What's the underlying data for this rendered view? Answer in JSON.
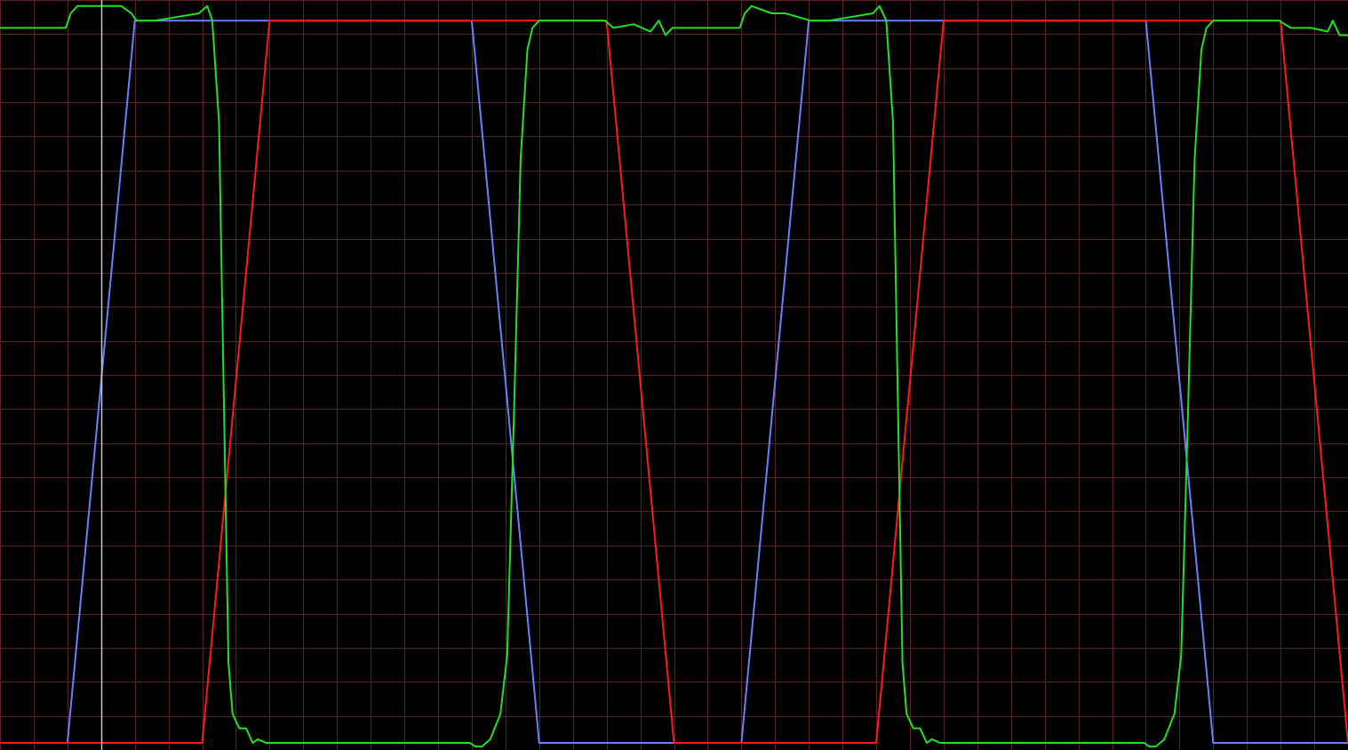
{
  "chart_data": {
    "type": "line",
    "title": "",
    "xlabel": "",
    "ylabel": "",
    "xlim": [
      0,
      40
    ],
    "ylim": [
      0,
      1
    ],
    "grid": true,
    "grid_divisions_x": 40,
    "grid_divisions_y": 22,
    "cursor_x": 3.0,
    "colors": {
      "background": "#000000",
      "grid": "#5a2323",
      "cursor": "#c8c8c8",
      "blue_trace": "#6a7fff",
      "red_trace": "#ff1a1a",
      "green_trace": "#22e022"
    },
    "series": [
      {
        "color": "#6a7fff",
        "x": [
          0,
          2.0,
          4.0,
          14.0,
          16.0,
          22.0,
          24.0,
          34.0,
          36.0,
          40.0
        ],
        "y": [
          0.0,
          0.0,
          0.99,
          0.99,
          0.0,
          0.0,
          0.99,
          0.99,
          0.0,
          0.0
        ]
      },
      {
        "color": "#ff1a1a",
        "x": [
          0,
          6.0,
          8.0,
          18.0,
          20.0,
          26.0,
          28.0,
          38.0,
          40.0
        ],
        "y": [
          0.0,
          0.0,
          0.99,
          0.99,
          0.0,
          0.0,
          0.99,
          0.99,
          0.0
        ]
      },
      {
        "color": "#22e022",
        "x": [
          0,
          1.95,
          2.1,
          2.3,
          3.0,
          3.4,
          3.6,
          3.9,
          4.05,
          4.6,
          5.9,
          6.15,
          6.3,
          6.5,
          6.65,
          6.78,
          6.9,
          7.1,
          7.3,
          7.5,
          7.65,
          7.9,
          8.0,
          13.95,
          14.1,
          14.3,
          14.55,
          14.85,
          15.05,
          15.25,
          15.45,
          15.65,
          15.8,
          16.0,
          16.2,
          17.95,
          18.2,
          18.8,
          19.3,
          19.55,
          19.75,
          19.95,
          20.15,
          21.95,
          22.1,
          22.3,
          22.9,
          23.3,
          24.05,
          24.6,
          25.9,
          26.1,
          26.3,
          26.5,
          26.65,
          26.78,
          26.9,
          27.1,
          27.3,
          27.5,
          27.65,
          27.9,
          28.0,
          33.95,
          34.1,
          34.3,
          34.55,
          34.85,
          35.05,
          35.25,
          35.45,
          35.65,
          35.8,
          36.0,
          36.2,
          37.95,
          38.3,
          38.9,
          39.4,
          39.55,
          39.75,
          40.0
        ],
        "y": [
          0.98,
          0.98,
          1.0,
          1.01,
          1.01,
          1.01,
          1.01,
          1.0,
          0.99,
          0.99,
          1.0,
          1.01,
          0.99,
          0.85,
          0.45,
          0.11,
          0.04,
          0.02,
          0.02,
          0.0,
          0.005,
          0.0,
          0.0,
          0.0,
          -0.005,
          -0.005,
          0.005,
          0.04,
          0.12,
          0.45,
          0.8,
          0.95,
          0.98,
          0.99,
          0.99,
          0.99,
          0.98,
          0.985,
          0.975,
          0.99,
          0.97,
          0.98,
          0.98,
          0.98,
          1.0,
          1.01,
          1.0,
          1.0,
          0.99,
          0.99,
          1.0,
          1.01,
          0.99,
          0.85,
          0.45,
          0.11,
          0.04,
          0.02,
          0.02,
          0.0,
          0.005,
          0.0,
          0.0,
          0.0,
          -0.005,
          -0.005,
          0.005,
          0.04,
          0.12,
          0.45,
          0.8,
          0.95,
          0.98,
          0.99,
          0.99,
          0.99,
          0.98,
          0.98,
          0.975,
          0.99,
          0.97,
          0.97
        ]
      }
    ]
  }
}
